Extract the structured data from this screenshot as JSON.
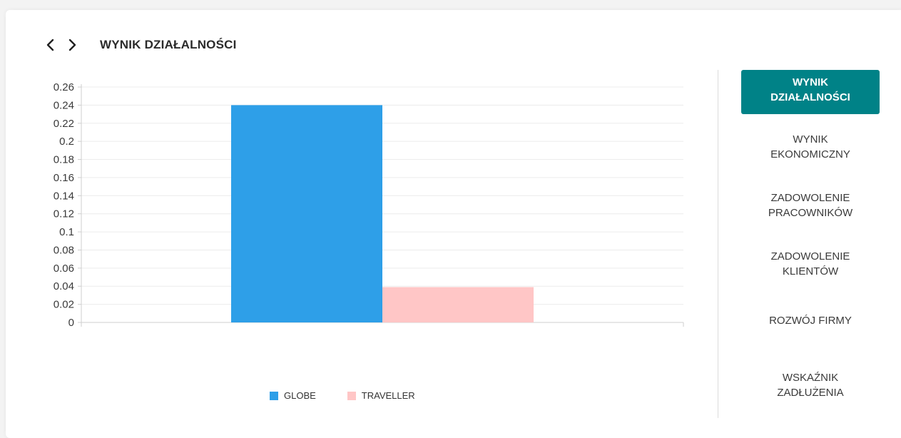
{
  "header": {
    "title": "WYNIK DZIAŁALNOŚCI",
    "prev_icon": "chevron-left-icon",
    "next_icon": "chevron-right-icon"
  },
  "sidebar": {
    "active_color": "#008287",
    "items": [
      {
        "label": "WYNIK\nDZIAŁALNOŚCI",
        "active": true
      },
      {
        "label": "WYNIK\nEKONOMICZNY",
        "active": false
      },
      {
        "label": "ZADOWOLENIE\nPRACOWNIKÓW",
        "active": false
      },
      {
        "label": "ZADOWOLENIE\nKLIENTÓW",
        "active": false
      },
      {
        "label": "ROZWÓJ FIRMY",
        "active": false
      },
      {
        "label": "WSKAŹNIK\nZADŁUŻENIA",
        "active": false
      }
    ]
  },
  "chart_data": {
    "type": "bar",
    "title": "",
    "xlabel": "",
    "ylabel": "",
    "ylim": [
      0,
      0.26
    ],
    "yticks": [
      "0",
      "0.02",
      "0.04",
      "0.06",
      "0.08",
      "0.1",
      "0.12",
      "0.14",
      "0.16",
      "0.18",
      "0.2",
      "0.22",
      "0.24",
      "0.26"
    ],
    "grid": true,
    "legend_position": "bottom",
    "series": [
      {
        "name": "GLOBE",
        "values": [
          0.24
        ],
        "color": "#2e9fe8"
      },
      {
        "name": "TRAVELLER",
        "values": [
          0.039
        ],
        "color": "#ffc6c6"
      }
    ]
  }
}
